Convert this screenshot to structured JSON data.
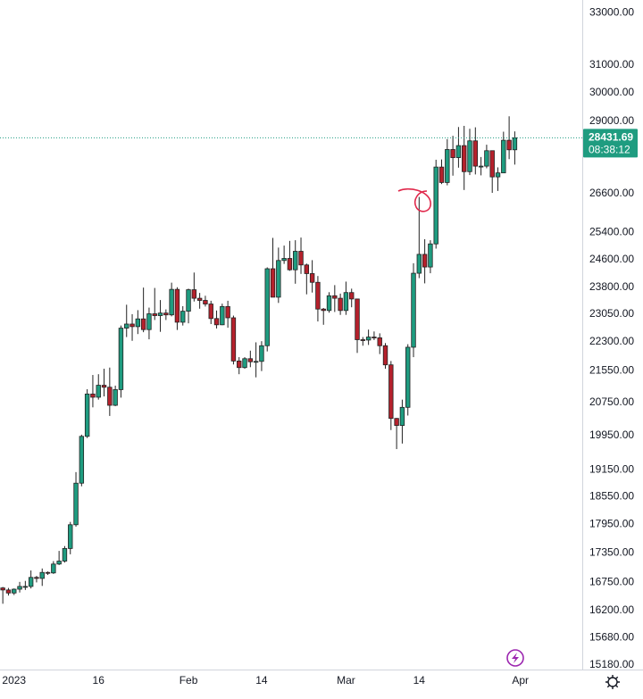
{
  "chart_data": {
    "type": "candlestick",
    "log": true,
    "grid": false,
    "up_color": "#1f9c80",
    "down_color": "#b5212c",
    "ylim": [
      15100,
      33500
    ],
    "yticks": [
      {
        "value": 33000,
        "label": "33000.00"
      },
      {
        "value": 31000,
        "label": "31000.00"
      },
      {
        "value": 30000,
        "label": "30000.00"
      },
      {
        "value": 29000,
        "label": "29000.00"
      },
      {
        "value": 26600,
        "label": "26600.00"
      },
      {
        "value": 25400,
        "label": "25400.00"
      },
      {
        "value": 24600,
        "label": "24600.00"
      },
      {
        "value": 23800,
        "label": "23800.00"
      },
      {
        "value": 23050,
        "label": "23050.00"
      },
      {
        "value": 22300,
        "label": "22300.00"
      },
      {
        "value": 21550,
        "label": "21550.00"
      },
      {
        "value": 20750,
        "label": "20750.00"
      },
      {
        "value": 19950,
        "label": "19950.00"
      },
      {
        "value": 19150,
        "label": "19150.00"
      },
      {
        "value": 18550,
        "label": "18550.00"
      },
      {
        "value": 17950,
        "label": "17950.00"
      },
      {
        "value": 17350,
        "label": "17350.00"
      },
      {
        "value": 16750,
        "label": "16750.00"
      },
      {
        "value": 16200,
        "label": "16200.00"
      },
      {
        "value": 15680,
        "label": "15680.00"
      },
      {
        "value": 15180,
        "label": "15180.00"
      }
    ],
    "xlim": [
      -0.5,
      103
    ],
    "xticks": [
      {
        "value": 2,
        "label": "2023"
      },
      {
        "value": 17,
        "label": "16"
      },
      {
        "value": 33,
        "label": "Feb"
      },
      {
        "value": 46,
        "label": "14"
      },
      {
        "value": 61,
        "label": "Mar"
      },
      {
        "value": 74,
        "label": "14"
      },
      {
        "value": 92,
        "label": "Apr"
      }
    ],
    "last_price": {
      "value": 28431.69,
      "label": "28431.69"
    },
    "countdown": "08:38:12",
    "open": [
      16640,
      16600,
      16540,
      16615,
      16670,
      16670,
      16850,
      16830,
      16950,
      16940,
      17120,
      17180,
      17440,
      17940,
      18850,
      19930,
      20960,
      20880,
      21180,
      21130,
      20680,
      21070,
      22670,
      22780,
      22710,
      22920,
      22630,
      23060,
      23010,
      23080,
      23030,
      23740,
      22830,
      23130,
      23730,
      23490,
      23430,
      23330,
      22930,
      22760,
      23260,
      22950,
      21800,
      21630,
      21860,
      21780,
      21790,
      22200,
      24330,
      23520,
      24570,
      24630,
      24300,
      24840,
      24440,
      24190,
      23940,
      23190,
      23150,
      23560,
      23490,
      23150,
      23650,
      23470,
      22360,
      22350,
      22430,
      22410,
      22200,
      21700,
      20360,
      20190,
      20630,
      22160,
      24200,
      24750,
      24380,
      25060,
      27460,
      26960,
      28040,
      27770,
      28170,
      27310,
      28330,
      27490,
      27490,
      28000,
      27140,
      27270,
      28350,
      28030
    ],
    "high": [
      16660,
      16640,
      16630,
      16760,
      16780,
      16990,
      16880,
      17030,
      16970,
      17180,
      17390,
      17490,
      18000,
      19100,
      19970,
      21080,
      21440,
      21460,
      21600,
      21630,
      21170,
      22740,
      23310,
      23050,
      23160,
      23790,
      23230,
      23780,
      23440,
      23180,
      23930,
      23800,
      23270,
      23760,
      24220,
      23640,
      23560,
      23420,
      23150,
      23340,
      23420,
      23010,
      21900,
      21900,
      22070,
      22290,
      22320,
      24370,
      25240,
      24950,
      25010,
      25150,
      25170,
      25250,
      24480,
      24580,
      24120,
      23220,
      23660,
      23860,
      23620,
      23960,
      23760,
      23480,
      22430,
      22630,
      22580,
      22530,
      22270,
      21800,
      20370,
      20820,
      22240,
      24490,
      26500,
      25200,
      25170,
      27700,
      27710,
      28390,
      28500,
      28800,
      28840,
      28740,
      28790,
      27790,
      28200,
      28000,
      27450,
      28640,
      29170,
      28650
    ],
    "low": [
      16330,
      16490,
      16500,
      16550,
      16600,
      16630,
      16750,
      16680,
      16900,
      16920,
      17100,
      17150,
      17320,
      17900,
      18780,
      19890,
      20630,
      20820,
      20900,
      20420,
      20660,
      20870,
      22430,
      22330,
      22510,
      22560,
      22370,
      22890,
      22570,
      22890,
      22990,
      22620,
      22740,
      22800,
      23400,
      23200,
      23260,
      22780,
      22660,
      22750,
      22680,
      21710,
      21460,
      21600,
      21640,
      21380,
      21540,
      22050,
      23520,
      23360,
      24470,
      24270,
      23900,
      24180,
      23600,
      23650,
      22850,
      22760,
      23090,
      23110,
      23030,
      23030,
      23240,
      22010,
      22200,
      22220,
      22350,
      21980,
      21600,
      20080,
      19630,
      19760,
      20430,
      21900,
      24060,
      23910,
      24200,
      24920,
      26910,
      26870,
      27180,
      27440,
      26720,
      27200,
      27220,
      27190,
      27420,
      26630,
      26690,
      27260,
      27720,
      27540
    ],
    "close": [
      16600,
      16540,
      16615,
      16670,
      16670,
      16850,
      16830,
      16950,
      16940,
      17120,
      17180,
      17440,
      17940,
      18850,
      19930,
      20960,
      20880,
      21180,
      21130,
      20680,
      21070,
      22670,
      22780,
      22710,
      22920,
      22630,
      23060,
      23010,
      23080,
      23030,
      23740,
      22830,
      23130,
      23730,
      23490,
      23430,
      23330,
      22930,
      22760,
      23260,
      22950,
      21800,
      21630,
      21860,
      21780,
      21790,
      22200,
      24330,
      23520,
      24570,
      24630,
      24300,
      24840,
      24440,
      24190,
      23940,
      23190,
      23150,
      23560,
      23490,
      23150,
      23650,
      23470,
      22360,
      22350,
      22430,
      22410,
      22200,
      21700,
      20360,
      20190,
      20630,
      22160,
      24200,
      24750,
      24380,
      25060,
      27460,
      26960,
      28040,
      27770,
      28170,
      27310,
      28330,
      27490,
      27490,
      28000,
      27140,
      27270,
      28350,
      28030,
      28431.69
    ]
  }
}
